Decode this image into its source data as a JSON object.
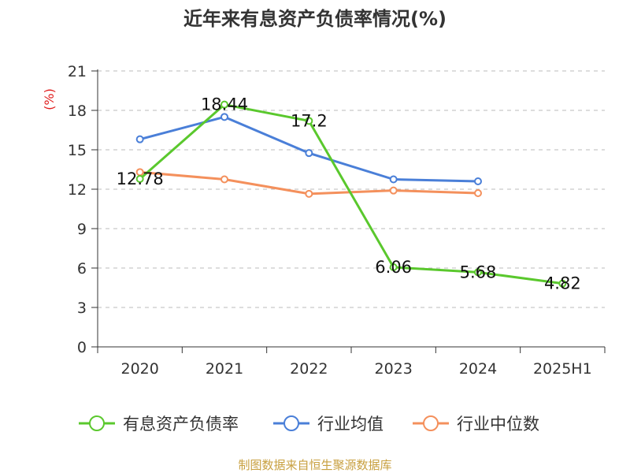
{
  "chart_data": {
    "type": "line",
    "title": "近年来有息资产负债率情况(%)",
    "ylabel": "(%)",
    "categories": [
      "2020",
      "2021",
      "2022",
      "2023",
      "2024",
      "2025H1"
    ],
    "ylim": [
      0,
      21
    ],
    "yticks": [
      "0",
      "3",
      "6",
      "9",
      "12",
      "15",
      "18",
      "21"
    ],
    "grid": true,
    "legend_position": "bottom",
    "series": [
      {
        "name": "有息资产负债率",
        "color": "#5ac82d",
        "values": [
          12.78,
          18.44,
          17.2,
          6.06,
          5.68,
          4.82
        ],
        "labels": [
          "12.78",
          "18.44",
          "17.2",
          "6.06",
          "5.68",
          "4.82"
        ]
      },
      {
        "name": "行业均值",
        "color": "#4a7fd8",
        "values": [
          15.8,
          17.5,
          14.75,
          12.75,
          12.6,
          null
        ],
        "labels": null
      },
      {
        "name": "行业中位数",
        "color": "#f4905c",
        "values": [
          13.3,
          12.75,
          11.65,
          11.9,
          11.7,
          null
        ],
        "labels": null
      }
    ],
    "source": "制图数据来自恒生聚源数据库"
  }
}
